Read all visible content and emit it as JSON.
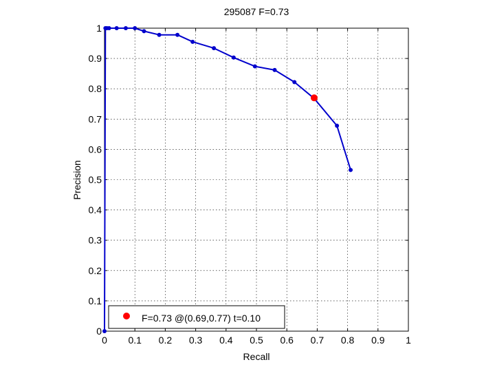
{
  "chart_data": {
    "type": "line",
    "title": "295087 F=0.73",
    "xlabel": "Recall",
    "ylabel": "Precision",
    "xlim": [
      0,
      1
    ],
    "ylim": [
      0,
      1
    ],
    "grid": true,
    "x_ticks": [
      "0",
      "0.1",
      "0.2",
      "0.3",
      "0.4",
      "0.5",
      "0.6",
      "0.7",
      "0.8",
      "0.9",
      "1"
    ],
    "y_ticks": [
      "0",
      "0.1",
      "0.2",
      "0.3",
      "0.4",
      "0.5",
      "0.6",
      "0.7",
      "0.8",
      "0.9",
      "1"
    ],
    "series": [
      {
        "color": "#0000cc",
        "points": [
          [
            0.0,
            0.0
          ],
          [
            0.003,
            1.0
          ],
          [
            0.008,
            1.0
          ],
          [
            0.015,
            1.0
          ],
          [
            0.04,
            1.0
          ],
          [
            0.07,
            1.0
          ],
          [
            0.1,
            1.0
          ],
          [
            0.13,
            0.99
          ],
          [
            0.18,
            0.978
          ],
          [
            0.24,
            0.978
          ],
          [
            0.29,
            0.955
          ],
          [
            0.36,
            0.934
          ],
          [
            0.425,
            0.903
          ],
          [
            0.495,
            0.874
          ],
          [
            0.56,
            0.862
          ],
          [
            0.625,
            0.822
          ],
          [
            0.69,
            0.768
          ],
          [
            0.765,
            0.678
          ],
          [
            0.81,
            0.532
          ]
        ]
      }
    ],
    "highlight": {
      "x": 0.69,
      "y": 0.77,
      "color": "#ff0000"
    },
    "legend": {
      "position": "bottom-left",
      "entries": [
        {
          "label": "F=0.73 @(0.69,0.77) t=0.10",
          "marker_color": "#ff0000"
        }
      ]
    }
  }
}
